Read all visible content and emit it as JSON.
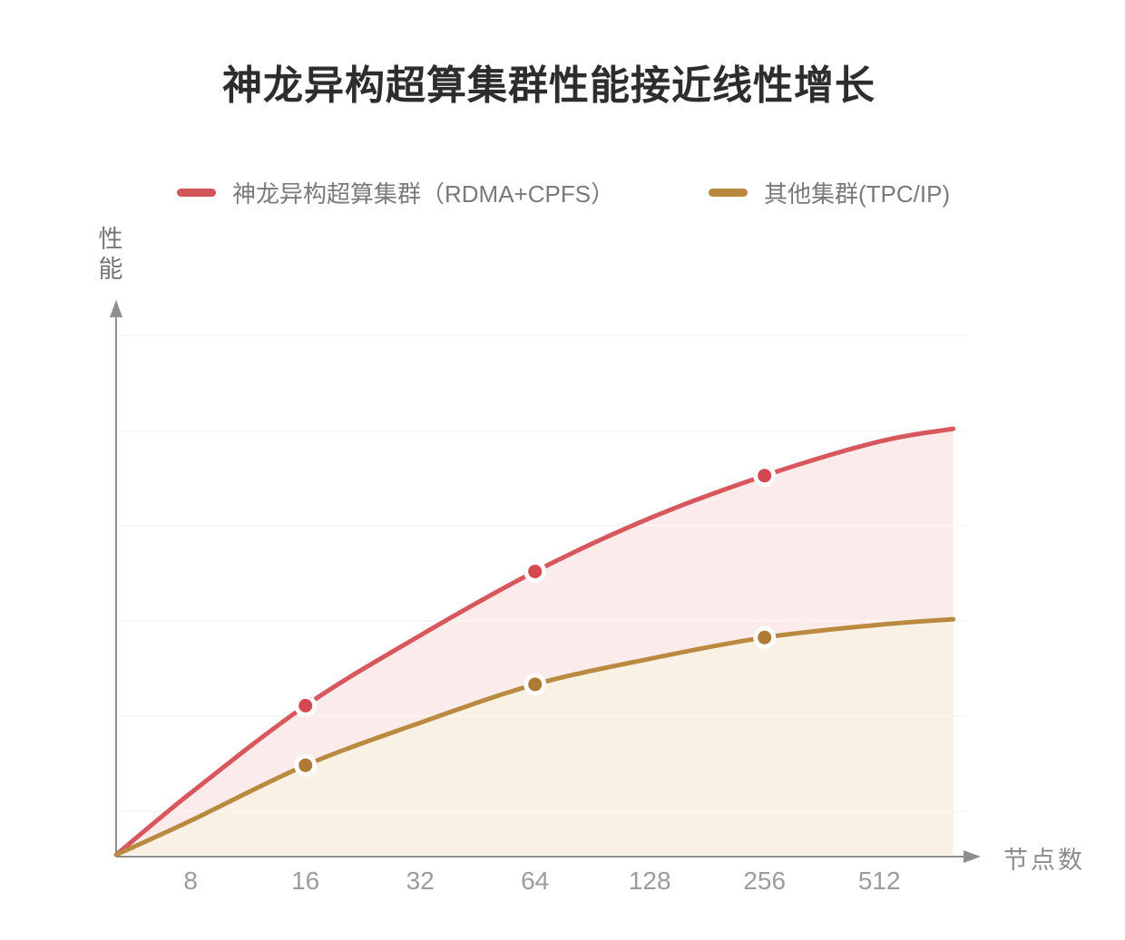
{
  "title": {
    "text": "神龙异构超算集群性能接近线性增长"
  },
  "legend": {
    "items": [
      {
        "label": "神龙异构超算集群（RDMA+CPFS）",
        "color": "#cf555b"
      },
      {
        "label": "其他集群(TPC/IP)",
        "color": "#b8883e"
      }
    ]
  },
  "axes": {
    "y_label": "性能",
    "x_label": "节点数"
  },
  "chart_data": {
    "type": "area",
    "title": "神龙异构超算集群性能接近线性增长",
    "xlabel": "节点数",
    "ylabel": "性能",
    "x_scale": "log2",
    "grid": "horizontal-only",
    "legend_position": "top",
    "x_tick_labels": [
      "8",
      "16",
      "32",
      "64",
      "128",
      "256",
      "512"
    ],
    "x_tick_values": [
      8,
      16,
      32,
      64,
      128,
      256,
      512
    ],
    "y_axis_note": "no tick values shown; relative performance 0-100 (arbitrary units)",
    "series": [
      {
        "name": "神龙异构超算集群（RDMA+CPFS）",
        "line_color": "#d8575d",
        "fill_color": "#fbebeb",
        "marker_color": "#d5484f",
        "marker_x": [
          16,
          64,
          256
        ],
        "points": [
          [
            5.1,
            0
          ],
          [
            8,
            14.5
          ],
          [
            16,
            35
          ],
          [
            32,
            51.5
          ],
          [
            64,
            66.5
          ],
          [
            128,
            79
          ],
          [
            256,
            89
          ],
          [
            512,
            97
          ],
          [
            800,
            100
          ]
        ]
      },
      {
        "name": "其他集群(TPC/IP)",
        "line_color": "#ba8a40",
        "fill_color": "#faf1e5",
        "marker_color": "#af7a33",
        "marker_x": [
          16,
          64,
          256
        ],
        "points": [
          [
            5.1,
            0
          ],
          [
            8,
            8
          ],
          [
            16,
            21
          ],
          [
            32,
            31
          ],
          [
            64,
            40
          ],
          [
            128,
            46
          ],
          [
            256,
            51
          ],
          [
            512,
            54
          ],
          [
            800,
            55.3
          ]
        ]
      }
    ]
  },
  "style": {
    "grid_color": "#efecec",
    "grid_overlay_color": "rgba(255,255,255,0.45)",
    "axis_color": "#8f8f8f",
    "marker_ring_color": "#ffffff"
  }
}
